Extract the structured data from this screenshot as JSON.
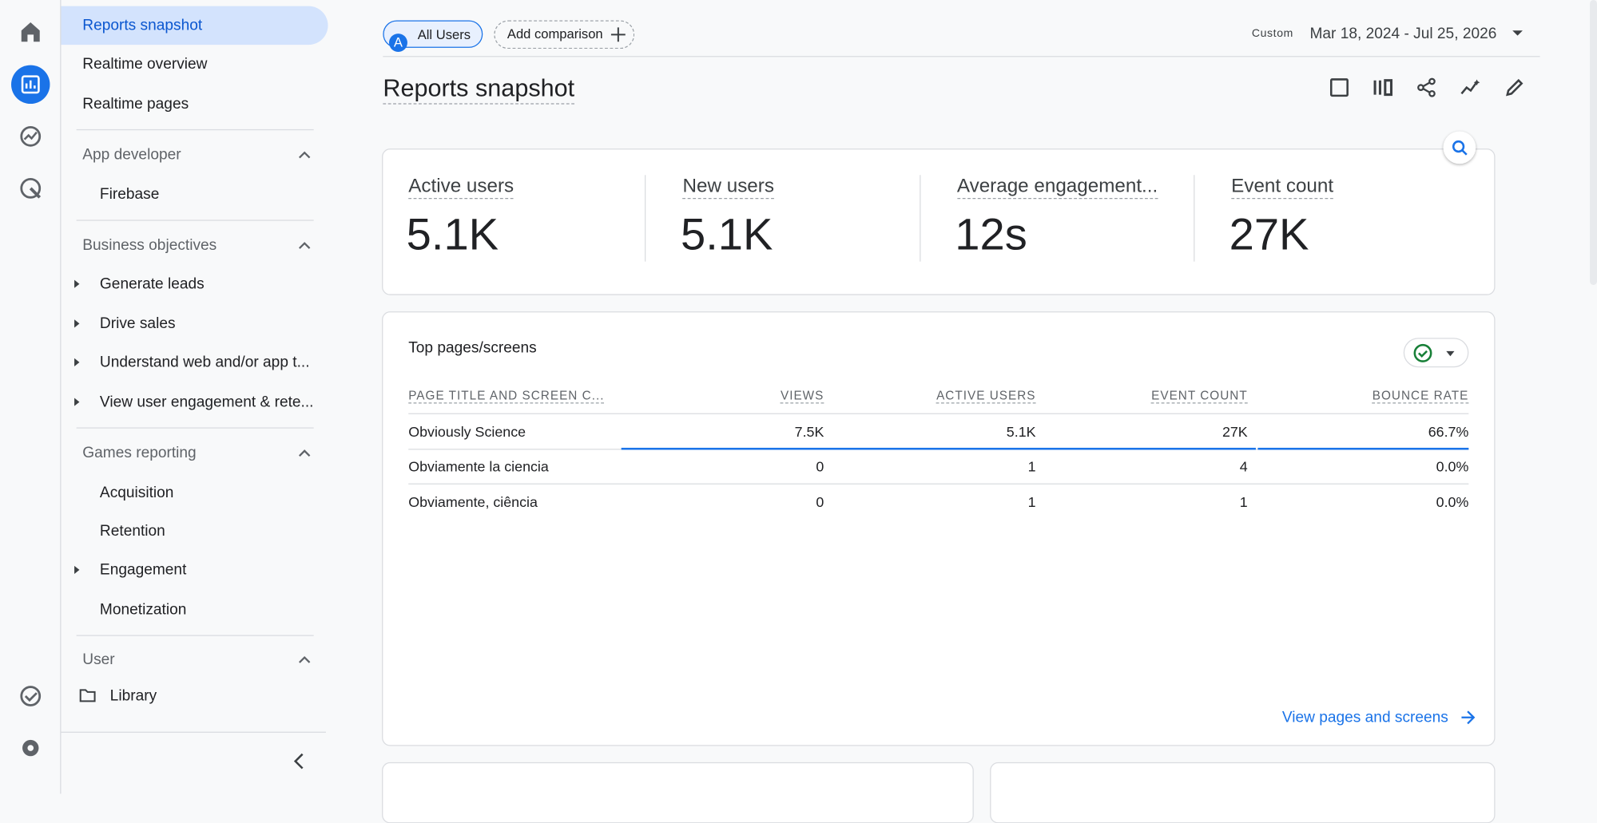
{
  "sidebar": {
    "top_items": [
      "Reports snapshot",
      "Realtime overview",
      "Realtime pages"
    ],
    "sections": [
      {
        "title": "App developer",
        "items": [
          {
            "label": "Firebase",
            "expandable": false
          }
        ]
      },
      {
        "title": "Business objectives",
        "items": [
          {
            "label": "Generate leads",
            "expandable": true
          },
          {
            "label": "Drive sales",
            "expandable": true
          },
          {
            "label": "Understand web and/or app t...",
            "expandable": true
          },
          {
            "label": "View user engagement & rete...",
            "expandable": true
          }
        ]
      },
      {
        "title": "Games reporting",
        "items": [
          {
            "label": "Acquisition",
            "expandable": false
          },
          {
            "label": "Retention",
            "expandable": false
          },
          {
            "label": "Engagement",
            "expandable": true
          },
          {
            "label": "Monetization",
            "expandable": false
          }
        ]
      }
    ],
    "user_section": {
      "title": "User",
      "item": "Library"
    }
  },
  "toolbar": {
    "segment_badge": "A",
    "segment": "All Users",
    "add_comparison": "Add comparison",
    "date_prefix": "Custom",
    "date_range": "Mar 18, 2024 - Jul 25, 2026"
  },
  "page_title": "Reports snapshot",
  "metrics": [
    {
      "label": "Active users",
      "value": "5.1K"
    },
    {
      "label": "New users",
      "value": "5.1K"
    },
    {
      "label": "Average engagement...",
      "value": "12s"
    },
    {
      "label": "Event count",
      "value": "27K"
    }
  ],
  "table": {
    "title": "Top pages/screens",
    "columns": [
      "PAGE TITLE AND SCREEN C...",
      "VIEWS",
      "ACTIVE USERS",
      "EVENT COUNT",
      "BOUNCE RATE"
    ],
    "rows": [
      [
        "Obviously Science",
        "7.5K",
        "5.1K",
        "27K",
        "66.7%"
      ],
      [
        "Obviamente la ciencia",
        "0",
        "1",
        "4",
        "0.0%"
      ],
      [
        "Obviamente, ciência",
        "0",
        "1",
        "1",
        "0.0%"
      ]
    ],
    "link": "View pages and screens"
  }
}
